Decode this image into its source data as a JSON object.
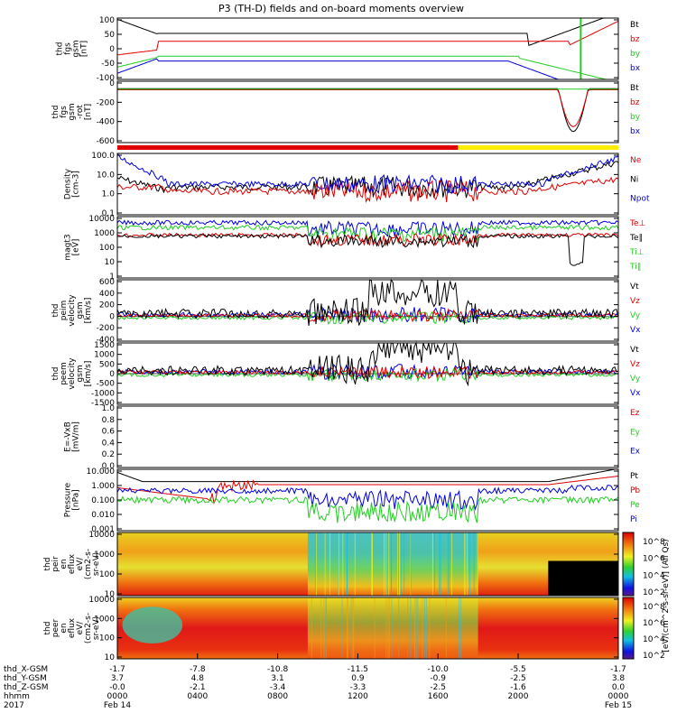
{
  "title": "P3 (TH-D) fields and on-board moments overview",
  "colors": {
    "black": "#000000",
    "red": "#e00000",
    "green": "#22cc22",
    "blue": "#0000dd"
  },
  "panels": [
    {
      "id": "fgs",
      "ylabel": [
        "thd",
        "fgs",
        "gsm",
        "[nT]"
      ],
      "ticks": [
        "100",
        "50",
        "0",
        "-50",
        "-100"
      ],
      "legend": [
        {
          "t": "Bt",
          "c": "black"
        },
        {
          "t": "bz",
          "c": "red"
        },
        {
          "t": "by",
          "c": "green"
        },
        {
          "t": "bx",
          "c": "blue"
        }
      ]
    },
    {
      "id": "fge",
      "ylabel": [
        "thd",
        "fgs",
        "gsm",
        "-rot",
        "[nT]"
      ],
      "ticks": [
        "0",
        "-200",
        "-400",
        "-600"
      ],
      "legend": [
        {
          "t": "Bt",
          "c": "black"
        },
        {
          "t": "bz",
          "c": "red"
        },
        {
          "t": "by",
          "c": "green"
        },
        {
          "t": "bx",
          "c": "blue"
        }
      ]
    },
    {
      "id": "density",
      "ylabel": [
        "Density",
        "[cm-3]"
      ],
      "ticks": [
        "100.0",
        "10.0",
        "1.0",
        "0.1"
      ],
      "legend": [
        {
          "t": "Ne",
          "c": "red"
        },
        {
          "t": "Ni",
          "c": "black"
        },
        {
          "t": "Npot",
          "c": "blue"
        }
      ]
    },
    {
      "id": "temp",
      "ylabel": [
        "magt3",
        "[eV]"
      ],
      "ticks": [
        "10000",
        "1000",
        "100",
        "10",
        "1"
      ],
      "legend": [
        {
          "t": "Te⊥",
          "c": "red"
        },
        {
          "t": "Te∥",
          "c": "black"
        },
        {
          "t": "Ti⊥",
          "c": "green"
        },
        {
          "t": "Ti∥",
          "c": "green"
        }
      ]
    },
    {
      "id": "peim",
      "ylabel": [
        "thd",
        "peim",
        "velocity",
        "gsm",
        "[km/s]"
      ],
      "ticks": [
        "600",
        "400",
        "200",
        "0",
        "-200",
        "-400"
      ],
      "legend": [
        {
          "t": "Vt",
          "c": "black"
        },
        {
          "t": "Vz",
          "c": "red"
        },
        {
          "t": "Vy",
          "c": "green"
        },
        {
          "t": "Vx",
          "c": "blue"
        }
      ]
    },
    {
      "id": "peem",
      "ylabel": [
        "thd",
        "peem",
        "velocity",
        "gsm",
        "[km/s]"
      ],
      "ticks": [
        "1500",
        "1000",
        "500",
        "0",
        "-500",
        "-1000",
        "-1500"
      ],
      "legend": [
        {
          "t": "Vt",
          "c": "black"
        },
        {
          "t": "Vz",
          "c": "red"
        },
        {
          "t": "Vy",
          "c": "green"
        },
        {
          "t": "Vx",
          "c": "blue"
        }
      ]
    },
    {
      "id": "efield",
      "ylabel": [
        "E=-VxB",
        "[mV/m]"
      ],
      "ticks": [
        "1.0",
        "0.8",
        "0.6",
        "0.4",
        "0.2",
        "0.0"
      ],
      "legend": [
        {
          "t": "Ez",
          "c": "red"
        },
        {
          "t": "Ey",
          "c": "green"
        },
        {
          "t": "Ex",
          "c": "blue"
        }
      ]
    },
    {
      "id": "pressure",
      "ylabel": [
        "Pressure",
        "[nPa]"
      ],
      "ticks": [
        "10.000",
        "1.000",
        "0.100",
        "0.010",
        "0.001"
      ],
      "legend": [
        {
          "t": "Pt",
          "c": "black"
        },
        {
          "t": "Pb",
          "c": "red"
        },
        {
          "t": "Pe",
          "c": "green"
        },
        {
          "t": "Pi",
          "c": "blue"
        }
      ]
    },
    {
      "id": "peir",
      "ylabel": [
        "thd",
        "peir",
        "en",
        "eflux",
        "eV/",
        "(cm2-s-",
        "sr-eV)"
      ],
      "ticks": [
        "10000",
        "1000",
        "100",
        "10"
      ]
    },
    {
      "id": "peer",
      "ylabel": [
        "thd",
        "peer",
        "en",
        "eflux",
        "eV/",
        "(cm2-s-",
        "sr-eV)"
      ],
      "ticks": [
        "10000",
        "1000",
        "100",
        "10"
      ]
    }
  ],
  "colorbar": {
    "label": "[eV/(cm^2-s-sr-eV)] (All Qs)",
    "ticks": [
      "10^8",
      "10^6",
      "10^4",
      "10^2"
    ]
  },
  "xaxis": {
    "rows": [
      {
        "label": "thd_X-GSM",
        "values": [
          "-1.7",
          "-7.8",
          "-10.8",
          "-11.5",
          "-10.0",
          "-5.5",
          "-1.7"
        ]
      },
      {
        "label": "thd_Y-GSM",
        "values": [
          "3.7",
          "4.8",
          "3.1",
          "0.9",
          "-0.9",
          "-2.5",
          "3.8"
        ]
      },
      {
        "label": "thd_Z-GSM",
        "values": [
          "-0.0",
          "-2.1",
          "-3.4",
          "-3.3",
          "-2.5",
          "-1.6",
          "0.0"
        ]
      },
      {
        "label": "hhmm",
        "values": [
          "0000",
          "0400",
          "0800",
          "1200",
          "1600",
          "2000",
          "0000"
        ]
      }
    ],
    "year": "2017",
    "start_date": "Feb 14",
    "end_date": "Feb 15"
  },
  "chart_data": {
    "type": "line",
    "title": "P3 (TH-D) fields and on-board moments overview",
    "x": [
      "0000",
      "0400",
      "0800",
      "1200",
      "1600",
      "2000",
      "0000"
    ],
    "series": [
      {
        "name": "Bt",
        "panel": "fgs",
        "values": [
          100,
          30,
          35,
          35,
          40,
          60,
          100
        ]
      },
      {
        "name": "bz",
        "panel": "fgs",
        "values": [
          0,
          10,
          12,
          15,
          15,
          10,
          50
        ]
      },
      {
        "name": "by",
        "panel": "fgs",
        "values": [
          -30,
          -15,
          -8,
          -8,
          -10,
          -40,
          -100
        ]
      },
      {
        "name": "bx",
        "panel": "fgs",
        "values": [
          -100,
          -30,
          -25,
          -20,
          -25,
          -60,
          -100
        ]
      },
      {
        "name": "Ni",
        "panel": "density",
        "values": [
          10,
          0.6,
          0.4,
          0.3,
          0.3,
          0.8,
          50
        ]
      },
      {
        "name": "Ne",
        "panel": "density",
        "values": [
          5,
          0.5,
          0.35,
          0.25,
          0.3,
          0.7,
          10
        ]
      },
      {
        "name": "Npot",
        "panel": "density",
        "values": [
          100,
          0.7,
          0.5,
          0.3,
          0.4,
          1.0,
          80
        ]
      }
    ]
  }
}
